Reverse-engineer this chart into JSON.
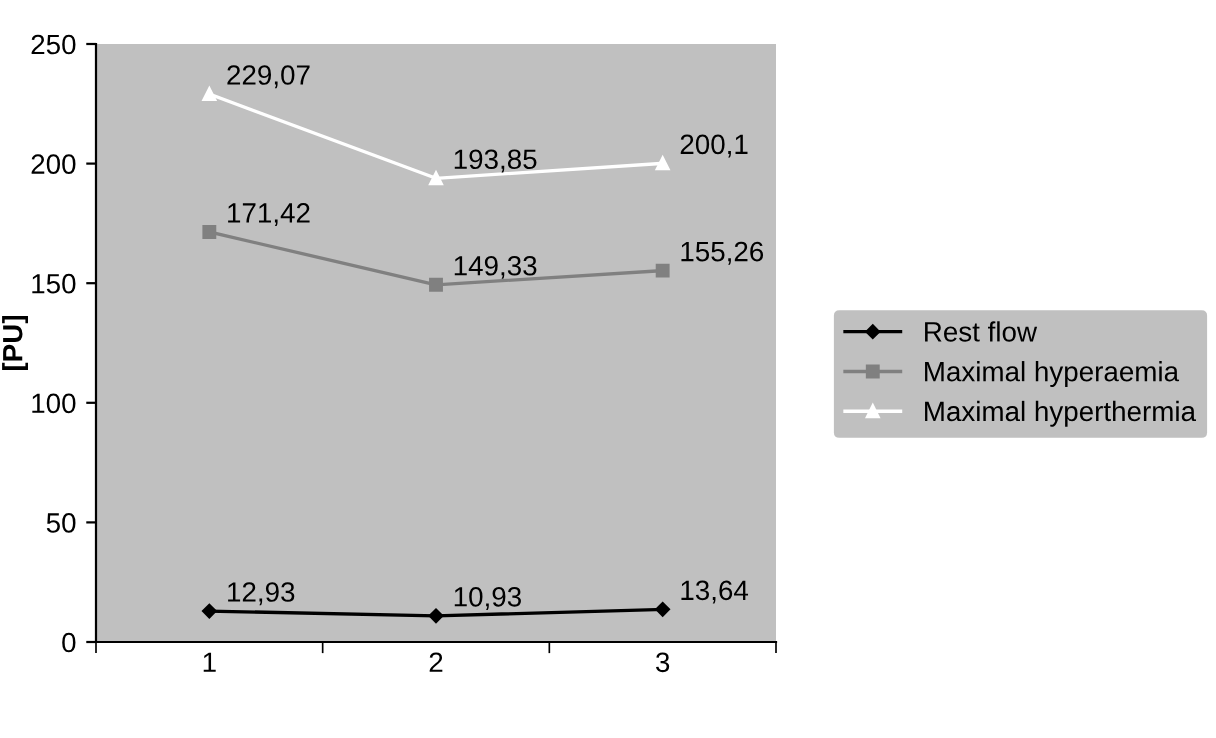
{
  "chart_data": {
    "type": "line",
    "ylabel": "[PU]",
    "categories": [
      "1",
      "2",
      "3"
    ],
    "series": [
      {
        "name": "Rest flow",
        "color": "#000000",
        "marker": "diamond",
        "values": [
          12.93,
          10.93,
          13.64
        ],
        "value_labels": [
          "12,93",
          "10,93",
          "13,64"
        ]
      },
      {
        "name": "Maximal hyperaemia",
        "color": "#808080",
        "marker": "square",
        "values": [
          171.42,
          149.33,
          155.26
        ],
        "value_labels": [
          "171,42",
          "149,33",
          "155,26"
        ]
      },
      {
        "name": "Maximal hyperthermia",
        "color": "#ffffff",
        "marker": "triangle",
        "values": [
          229.07,
          193.85,
          200.1
        ],
        "value_labels": [
          "229,07",
          "193,85",
          "200,1"
        ]
      }
    ],
    "ylim": [
      0,
      250
    ],
    "yticks": [
      0,
      50,
      100,
      150,
      200,
      250
    ],
    "grid": false,
    "legend": "right",
    "line_style": "solid"
  }
}
